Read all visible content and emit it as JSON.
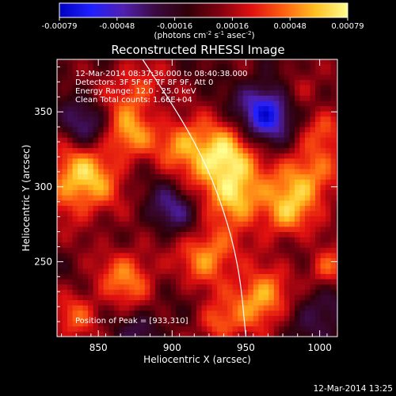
{
  "chart_data": {
    "type": "heatmap",
    "title": "Reconstructed RHESSI Image",
    "xlabel": "Heliocentric X (arcsec)",
    "ylabel": "Heliocentric Y (arcsec)",
    "xlim": [
      822,
      1012
    ],
    "ylim": [
      200,
      385
    ],
    "xticks": [
      850,
      900,
      950,
      1000
    ],
    "yticks": [
      250,
      300,
      350
    ],
    "colorbar": {
      "ticks": [
        "-0.00079",
        "-0.00048",
        "-0.00016",
        "0.00016",
        "0.00048",
        "0.00079"
      ],
      "unit_main": "(photons cm",
      "unit_exp1": "-2",
      "unit_mid": " s",
      "unit_exp2": "-1",
      "unit_end": " asec",
      "unit_exp3": "-2",
      "unit_close": ")",
      "colors": [
        "#0000c0",
        "#2020ff",
        "#5020b0",
        "#3a0a40",
        "#300008",
        "#800010",
        "#e01010",
        "#ff6010",
        "#ffc020",
        "#ffff90"
      ]
    },
    "info_lines": [
      "12-Mar-2014 08:37:36.000 to 08:40:38.000",
      "Detectors: 3F 5F 6F 7F 8F 9F, Att 0",
      "Energy Range: 12.0 - 25.0 keV",
      "Clean    Total counts: 1.66E+04"
    ],
    "peak_label": "Position of Peak = [933,310]",
    "peak": [
      933,
      310
    ],
    "limb_arc": [
      [
        880,
        385
      ],
      [
        910,
        340
      ],
      [
        930,
        300
      ],
      [
        945,
        250
      ],
      [
        950,
        200
      ]
    ],
    "sources": [
      {
        "x": 933,
        "y": 318,
        "v": 1.0,
        "r": 16
      },
      {
        "x": 945,
        "y": 292,
        "v": 0.7,
        "r": 12
      },
      {
        "x": 838,
        "y": 305,
        "v": 0.85,
        "r": 18
      },
      {
        "x": 870,
        "y": 335,
        "v": 0.6,
        "r": 12
      },
      {
        "x": 905,
        "y": 330,
        "v": 0.55,
        "r": 12
      },
      {
        "x": 990,
        "y": 305,
        "v": 0.75,
        "r": 16
      },
      {
        "x": 975,
        "y": 280,
        "v": 0.55,
        "r": 12
      },
      {
        "x": 925,
        "y": 255,
        "v": 0.7,
        "r": 14
      },
      {
        "x": 870,
        "y": 240,
        "v": 0.6,
        "r": 14
      },
      {
        "x": 960,
        "y": 225,
        "v": 0.8,
        "r": 14
      },
      {
        "x": 1005,
        "y": 245,
        "v": 0.55,
        "r": 10
      },
      {
        "x": 835,
        "y": 215,
        "v": 0.45,
        "r": 12
      },
      {
        "x": 875,
        "y": 365,
        "v": 0.5,
        "r": 14
      },
      {
        "x": 985,
        "y": 365,
        "v": 0.4,
        "r": 10
      },
      {
        "x": 1005,
        "y": 340,
        "v": 0.45,
        "r": 10
      },
      {
        "x": 930,
        "y": 208,
        "v": 0.5,
        "r": 10
      },
      {
        "x": 965,
        "y": 350,
        "v": -0.9,
        "r": 14
      },
      {
        "x": 840,
        "y": 340,
        "v": -0.5,
        "r": 12
      },
      {
        "x": 900,
        "y": 285,
        "v": -0.45,
        "r": 12
      },
      {
        "x": 1000,
        "y": 215,
        "v": -0.4,
        "r": 14
      },
      {
        "x": 880,
        "y": 205,
        "v": -0.35,
        "r": 10
      }
    ]
  },
  "footer": {
    "timestamp": "12-Mar-2014 13:25"
  }
}
